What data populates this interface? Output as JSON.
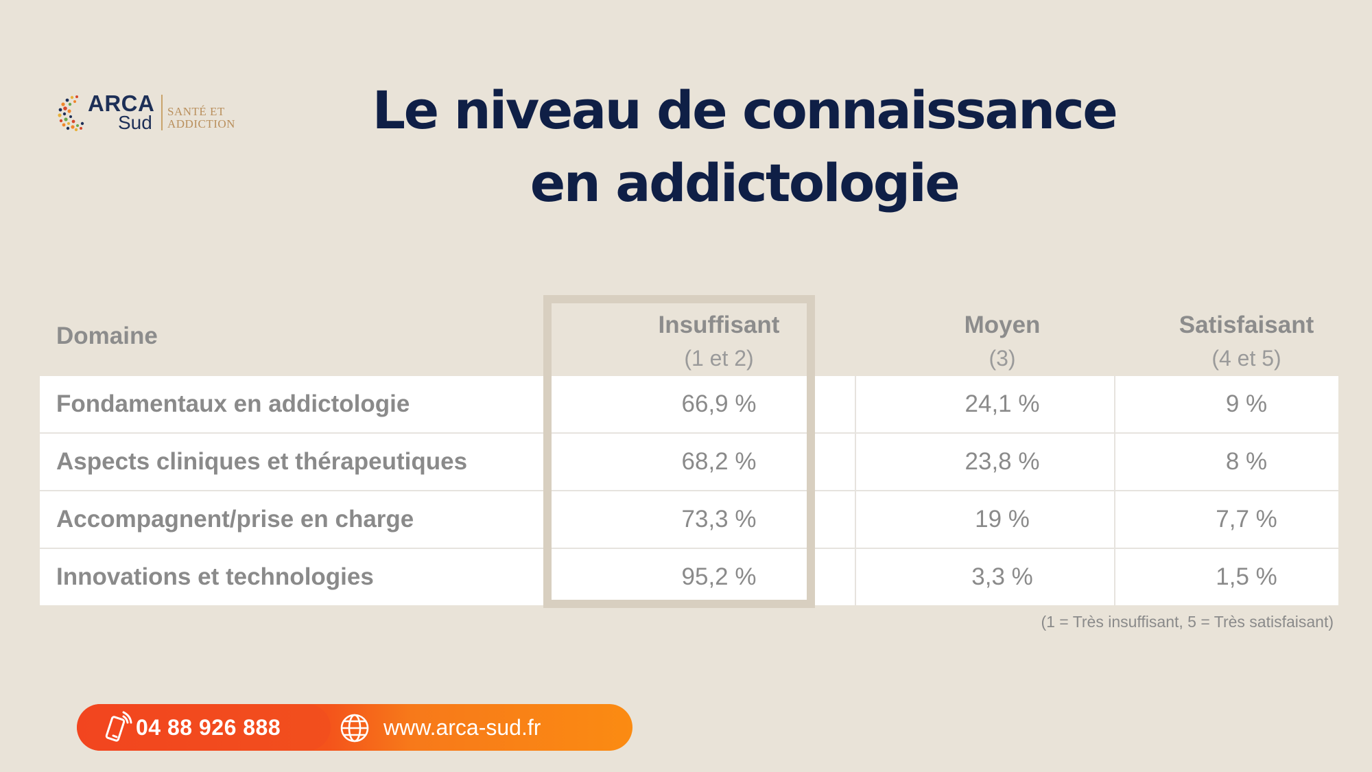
{
  "logo": {
    "name_top": "ARCA",
    "name_bottom": "Sud",
    "tagline_line1": "SANTÉ ET",
    "tagline_line2": "ADDICTION"
  },
  "title": {
    "line1": "Le niveau de connaissance",
    "line2": "en addictologie"
  },
  "table": {
    "headers": {
      "domain": "Domaine",
      "insuffisant": "Insuffisant",
      "insuffisant_sub": "(1 et 2)",
      "moyen": "Moyen",
      "moyen_sub": "(3)",
      "satisfaisant": "Satisfaisant",
      "satisfaisant_sub": "(4 et 5)"
    },
    "rows": [
      {
        "domain": "Fondamentaux en addictologie",
        "insuffisant": "66,9 %",
        "moyen": "24,1 %",
        "satisfaisant": "9 %"
      },
      {
        "domain": "Aspects cliniques et thérapeutiques",
        "insuffisant": "68,2 %",
        "moyen": "23,8 %",
        "satisfaisant": "8 %"
      },
      {
        "domain": "Accompagnent/prise en charge",
        "insuffisant": "73,3 %",
        "moyen": "19 %",
        "satisfaisant": "7,7 %"
      },
      {
        "domain": "Innovations et technologies",
        "insuffisant": "95,2 %",
        "moyen": "3,3 %",
        "satisfaisant": "1,5 %"
      }
    ],
    "footnote": "(1 = Très insuffisant, 5 = Très satisfaisant)"
  },
  "contact": {
    "phone": "04 88 926 888",
    "website": "www.arca-sud.fr",
    "phone_icon": "phone-icon",
    "web_icon": "globe-icon"
  },
  "colors": {
    "background": "#e9e3d8",
    "title": "#0f1f46",
    "highlight_frame": "#d8cfc0",
    "contact_orange": "#f34a1e",
    "contact_orange_light": "#fb8b12"
  }
}
